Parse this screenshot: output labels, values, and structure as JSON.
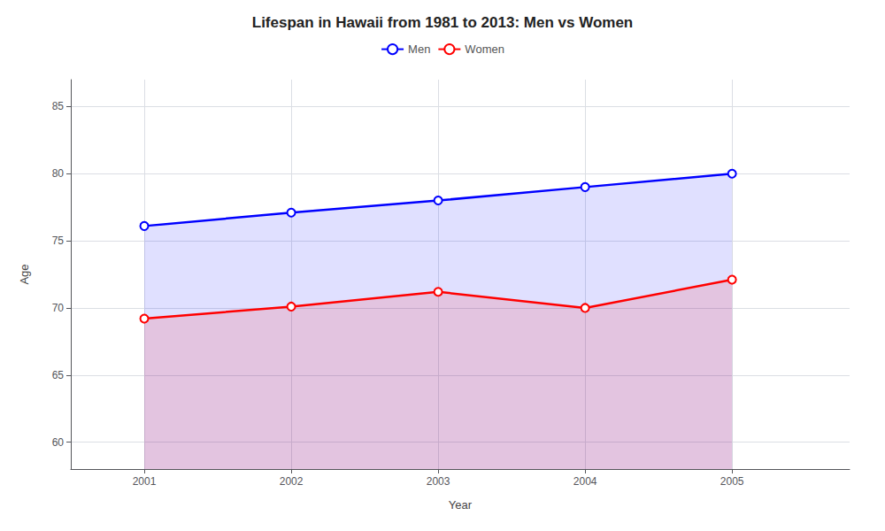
{
  "chart_data": {
    "type": "area",
    "title": "Lifespan in Hawaii from 1981 to 2013: Men vs Women",
    "xlabel": "Year",
    "ylabel": "Age",
    "x": [
      2001,
      2002,
      2003,
      2004,
      2005
    ],
    "series": [
      {
        "name": "Men",
        "color": "#0000ff",
        "values": [
          76.1,
          77.1,
          78.0,
          79.0,
          80.0
        ]
      },
      {
        "name": "Women",
        "color": "#ff0000",
        "values": [
          69.2,
          70.1,
          71.2,
          70.0,
          72.1
        ]
      }
    ],
    "xlim": [
      2000.5,
      2005.8
    ],
    "xticks": [
      2001,
      2002,
      2003,
      2004,
      2005
    ],
    "ylim": [
      58,
      87
    ],
    "yticks": [
      60,
      65,
      70,
      75,
      80,
      85
    ],
    "grid": true,
    "legend": "top",
    "marker": "circle"
  }
}
